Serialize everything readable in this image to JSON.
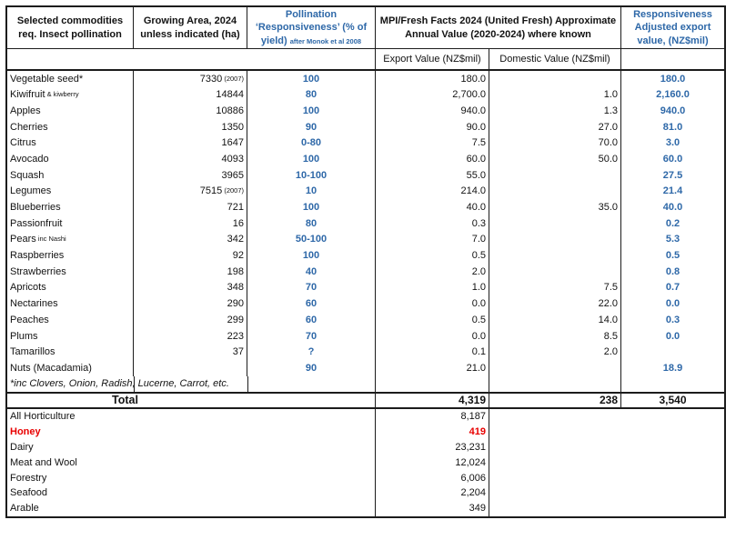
{
  "table": {
    "headers": {
      "col1": "Selected commodities req. Insect pollination",
      "col2": "Growing Area, 2024 unless indicated (ha)",
      "col3_main": "Pollination ‘Responsiveness’ (% of yield)",
      "col3_note": "after Monok et al 2008",
      "col45": "MPI/Fresh Facts 2024 (United Fresh) Approximate Annual Value (2020-2024) where known",
      "col6": "Responsiveness Adjusted export value, (NZ$mil)",
      "sub_export": "Export Value (NZ$mil)",
      "sub_domestic": "Domestic Value (NZ$mil)"
    },
    "rows": [
      {
        "name": "Vegetable seed*",
        "name_note": "",
        "area": "7330",
        "area_note": "(2007)",
        "resp": "100",
        "export": "180.0",
        "domestic": "",
        "adjusted": "180.0"
      },
      {
        "name": "Kiwifruit",
        "name_note": "& kiwberry",
        "area": "14844",
        "area_note": "",
        "resp": "80",
        "export": "2,700.0",
        "domestic": "1.0",
        "adjusted": "2,160.0"
      },
      {
        "name": "Apples",
        "name_note": "",
        "area": "10886",
        "area_note": "",
        "resp": "100",
        "export": "940.0",
        "domestic": "1.3",
        "adjusted": "940.0"
      },
      {
        "name": "Cherries",
        "name_note": "",
        "area": "1350",
        "area_note": "",
        "resp": "90",
        "export": "90.0",
        "domestic": "27.0",
        "adjusted": "81.0"
      },
      {
        "name": "Citrus",
        "name_note": "",
        "area": "1647",
        "area_note": "",
        "resp": "0-80",
        "export": "7.5",
        "domestic": "70.0",
        "adjusted": "3.0"
      },
      {
        "name": "Avocado",
        "name_note": "",
        "area": "4093",
        "area_note": "",
        "resp": "100",
        "export": "60.0",
        "domestic": "50.0",
        "adjusted": "60.0"
      },
      {
        "name": "Squash",
        "name_note": "",
        "area": "3965",
        "area_note": "",
        "resp": "10-100",
        "export": "55.0",
        "domestic": "",
        "adjusted": "27.5"
      },
      {
        "name": "Legumes",
        "name_note": "",
        "area": "7515",
        "area_note": "(2007)",
        "resp": "10",
        "export": "214.0",
        "domestic": "",
        "adjusted": "21.4"
      },
      {
        "name": "Blueberries",
        "name_note": "",
        "area": "721",
        "area_note": "",
        "resp": "100",
        "export": "40.0",
        "domestic": "35.0",
        "adjusted": "40.0"
      },
      {
        "name": "Passionfruit",
        "name_note": "",
        "area": "16",
        "area_note": "",
        "resp": "80",
        "export": "0.3",
        "domestic": "",
        "adjusted": "0.2"
      },
      {
        "name": "Pears",
        "name_note": "inc Nashi",
        "area": "342",
        "area_note": "",
        "resp": "50-100",
        "export": "7.0",
        "domestic": "",
        "adjusted": "5.3"
      },
      {
        "name": "Raspberries",
        "name_note": "",
        "area": "92",
        "area_note": "",
        "resp": "100",
        "export": "0.5",
        "domestic": "",
        "adjusted": "0.5"
      },
      {
        "name": "Strawberries",
        "name_note": "",
        "area": "198",
        "area_note": "",
        "resp": "40",
        "export": "2.0",
        "domestic": "",
        "adjusted": "0.8"
      },
      {
        "name": "Apricots",
        "name_note": "",
        "area": "348",
        "area_note": "",
        "resp": "70",
        "export": "1.0",
        "domestic": "7.5",
        "adjusted": "0.7"
      },
      {
        "name": "Nectarines",
        "name_note": "",
        "area": "290",
        "area_note": "",
        "resp": "60",
        "export": "0.0",
        "domestic": "22.0",
        "adjusted": "0.0"
      },
      {
        "name": "Peaches",
        "name_note": "",
        "area": "299",
        "area_note": "",
        "resp": "60",
        "export": "0.5",
        "domestic": "14.0",
        "adjusted": "0.3"
      },
      {
        "name": "Plums",
        "name_note": "",
        "area": "223",
        "area_note": "",
        "resp": "70",
        "export": "0.0",
        "domestic": "8.5",
        "adjusted": "0.0"
      },
      {
        "name": "Tamarillos",
        "name_note": "",
        "area": "37",
        "area_note": "",
        "resp": "?",
        "export": "0.1",
        "domestic": "2.0",
        "adjusted": ""
      },
      {
        "name": "Nuts (Macadamia)",
        "name_note": "",
        "area": "",
        "area_note": "",
        "resp": "90",
        "export": "21.0",
        "domestic": "",
        "adjusted": "18.9"
      }
    ],
    "footnote": "*inc Clovers, Onion, Radish, Lucerne, Carrot, etc.",
    "total": {
      "label": "Total",
      "export": "4,319",
      "domestic": "238",
      "adjusted": "3,540"
    },
    "sectors": [
      {
        "name": "All Horticulture",
        "value": "8,187",
        "highlight": false
      },
      {
        "name": "Honey",
        "value": "419",
        "highlight": true
      },
      {
        "name": "Dairy",
        "value": "23,231",
        "highlight": false
      },
      {
        "name": "Meat and Wool",
        "value": "12,024",
        "highlight": false
      },
      {
        "name": "Forestry",
        "value": "6,006",
        "highlight": false
      },
      {
        "name": "Seafood",
        "value": "2,204",
        "highlight": false
      },
      {
        "name": "Arable",
        "value": "349",
        "highlight": false
      }
    ]
  },
  "colors": {
    "accent_blue": "#2E68A8",
    "highlight_red": "#E80000",
    "border": "#1C1C1C"
  }
}
